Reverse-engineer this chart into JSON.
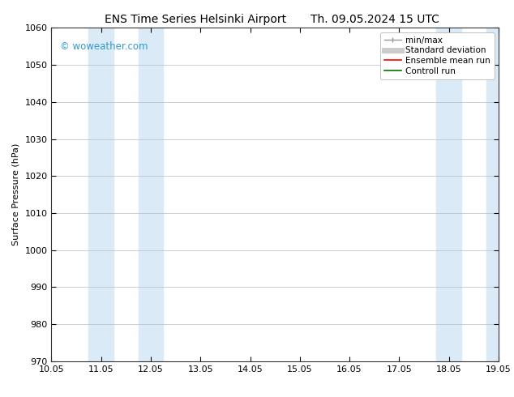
{
  "title": "ENS Time Series Helsinki Airport",
  "title2": "Th. 09.05.2024 15 UTC",
  "ylabel": "Surface Pressure (hPa)",
  "ylim": [
    970,
    1060
  ],
  "yticks": [
    970,
    980,
    990,
    1000,
    1010,
    1020,
    1030,
    1040,
    1050,
    1060
  ],
  "xtick_labels": [
    "10.05",
    "11.05",
    "12.05",
    "13.05",
    "14.05",
    "15.05",
    "16.05",
    "17.05",
    "18.05",
    "19.05"
  ],
  "xlim": [
    0,
    9
  ],
  "shaded_regions": [
    {
      "xmin": 0.75,
      "xmax": 1.25,
      "color": "#daeaf7"
    },
    {
      "xmin": 1.75,
      "xmax": 2.25,
      "color": "#daeaf7"
    },
    {
      "xmin": 7.75,
      "xmax": 8.25,
      "color": "#daeaf7"
    },
    {
      "xmin": 8.75,
      "xmax": 9.25,
      "color": "#daeaf7"
    }
  ],
  "watermark": "© woweather.com",
  "watermark_color": "#3399cc",
  "bg_color": "#ffffff",
  "plot_bg_color": "#ffffff",
  "grid_color": "#bbbbbb",
  "legend_items": [
    {
      "label": "min/max",
      "color": "#999999",
      "lw": 1.0,
      "ls": "-"
    },
    {
      "label": "Standard deviation",
      "color": "#cccccc",
      "lw": 5,
      "ls": "-"
    },
    {
      "label": "Ensemble mean run",
      "color": "#ff0000",
      "lw": 1.2,
      "ls": "-"
    },
    {
      "label": "Controll run",
      "color": "#007700",
      "lw": 1.2,
      "ls": "-"
    }
  ],
  "font_family": "DejaVu Sans",
  "title_fontsize": 10,
  "axis_fontsize": 8,
  "tick_fontsize": 8,
  "legend_fontsize": 7.5
}
